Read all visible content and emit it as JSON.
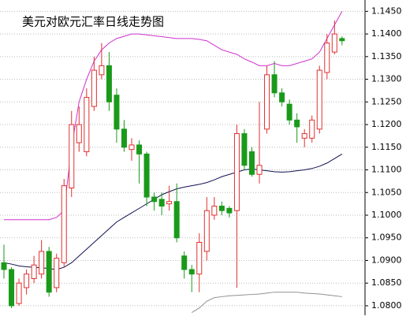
{
  "chart_data": {
    "type": "candlestick",
    "title": "美元对欧元汇率日线走势图",
    "title_color": "#e00000",
    "up_color": "#e03030",
    "down_color": "#1a9a1a",
    "ylim": [
      1.0779,
      1.1475
    ],
    "yticks": [
      {
        "value": 1.08,
        "label": "1.0800"
      },
      {
        "value": 1.085,
        "label": "1.0850"
      },
      {
        "value": 1.09,
        "label": "1.0900"
      },
      {
        "value": 1.095,
        "label": "1.0950"
      },
      {
        "value": 1.1,
        "label": "1.1000"
      },
      {
        "value": 1.105,
        "label": "1.1050"
      },
      {
        "value": 1.11,
        "label": "1.1100"
      },
      {
        "value": 1.115,
        "label": "1.1150"
      },
      {
        "value": 1.12,
        "label": "1.1200"
      },
      {
        "value": 1.125,
        "label": "1.1250"
      },
      {
        "value": 1.13,
        "label": "1.1300"
      },
      {
        "value": 1.135,
        "label": "1.1350"
      },
      {
        "value": 1.14,
        "label": "1.1400"
      },
      {
        "value": 1.145,
        "label": "1.1450"
      }
    ],
    "grid": true,
    "open": [
      1.0895,
      1.088,
      1.0805,
      1.084,
      1.086,
      1.087,
      1.092,
      1.084,
      1.0895,
      1.106,
      1.116,
      1.114,
      1.124,
      1.131,
      1.133,
      1.1265,
      1.119,
      1.1145,
      1.1155,
      1.1135,
      1.104,
      1.1035,
      1.1025,
      1.103,
      1.091,
      1.088,
      1.087,
      1.092,
      1.1,
      1.102,
      1.1015,
      1.101,
      1.118,
      1.114,
      1.109,
      1.119,
      1.131,
      1.127,
      1.1245,
      1.121,
      1.117,
      1.117,
      1.119,
      1.1315,
      1.136,
      1.139
    ],
    "high": [
      1.0935,
      1.0885,
      1.086,
      1.088,
      1.091,
      1.0945,
      1.093,
      1.0915,
      1.108,
      1.123,
      1.124,
      1.128,
      1.135,
      1.138,
      1.136,
      1.128,
      1.121,
      1.117,
      1.1165,
      1.114,
      1.105,
      1.105,
      1.1065,
      1.107,
      1.092,
      1.089,
      1.096,
      1.104,
      1.104,
      1.103,
      1.102,
      1.12,
      1.119,
      1.115,
      1.125,
      1.133,
      1.134,
      1.128,
      1.1255,
      1.1225,
      1.119,
      1.122,
      1.133,
      1.14,
      1.143,
      1.1395
    ],
    "low": [
      1.086,
      1.0795,
      1.08,
      1.0825,
      1.085,
      1.086,
      1.082,
      1.083,
      1.0885,
      1.104,
      1.114,
      1.113,
      1.123,
      1.13,
      1.123,
      1.116,
      1.114,
      1.112,
      1.107,
      1.102,
      1.101,
      1.1,
      1.101,
      1.094,
      1.086,
      1.083,
      1.083,
      1.09,
      1.099,
      1.1,
      1.0995,
      1.084,
      1.11,
      1.1085,
      1.107,
      1.118,
      1.126,
      1.124,
      1.12,
      1.116,
      1.115,
      1.116,
      1.118,
      1.13,
      1.1355,
      1.1375
    ],
    "close": [
      1.088,
      1.08,
      1.085,
      1.087,
      1.089,
      1.092,
      1.083,
      1.0905,
      1.1065,
      1.12,
      1.12,
      1.126,
      1.132,
      1.133,
      1.125,
      1.119,
      1.115,
      1.1155,
      1.1135,
      1.104,
      1.103,
      1.102,
      1.103,
      1.095,
      1.088,
      1.087,
      1.094,
      1.101,
      1.102,
      1.101,
      1.1005,
      1.118,
      1.111,
      1.109,
      1.111,
      1.131,
      1.127,
      1.125,
      1.121,
      1.1195,
      1.118,
      1.121,
      1.132,
      1.138,
      1.14,
      1.1385
    ],
    "series": [
      {
        "name": "upper",
        "color": "#d030d0",
        "values": [
          1.099,
          1.099,
          1.099,
          1.099,
          1.099,
          1.099,
          1.099,
          1.0995,
          1.101,
          1.115,
          1.125,
          1.13,
          1.134,
          1.1365,
          1.138,
          1.139,
          1.1395,
          1.14,
          1.14,
          1.1398,
          1.1396,
          1.1394,
          1.1392,
          1.139,
          1.139,
          1.139,
          1.1388,
          1.1385,
          1.1375,
          1.1365,
          1.136,
          1.1355,
          1.1345,
          1.1338,
          1.133,
          1.133,
          1.1335,
          1.133,
          1.133,
          1.1335,
          1.134,
          1.1345,
          1.136,
          1.139,
          1.142,
          1.145
        ]
      },
      {
        "name": "middle",
        "color": "#101050",
        "values": [
          1.0895,
          1.0892,
          1.0888,
          1.0886,
          1.0885,
          1.0884,
          1.0882,
          1.088,
          1.0885,
          1.0895,
          1.091,
          1.0925,
          1.094,
          1.0955,
          1.097,
          1.0985,
          1.0995,
          1.1005,
          1.1015,
          1.1025,
          1.1035,
          1.1045,
          1.1052,
          1.1058,
          1.1062,
          1.1065,
          1.1068,
          1.1072,
          1.1078,
          1.1085,
          1.109,
          1.1095,
          1.11,
          1.1102,
          1.11,
          1.1098,
          1.1096,
          1.1095,
          1.1096,
          1.1098,
          1.11,
          1.1103,
          1.1108,
          1.1115,
          1.1125,
          1.1135
        ]
      },
      {
        "name": "lower",
        "color": "#909090",
        "values": [
          null,
          null,
          null,
          null,
          null,
          null,
          null,
          null,
          null,
          null,
          null,
          null,
          null,
          null,
          null,
          null,
          null,
          null,
          null,
          null,
          null,
          null,
          null,
          null,
          null,
          1.0785,
          1.0795,
          1.081,
          1.0818,
          1.082,
          1.0822,
          1.0823,
          1.0824,
          1.0825,
          1.0826,
          1.0828,
          1.083,
          1.083,
          1.083,
          1.083,
          1.0828,
          1.0827,
          1.0826,
          1.0824,
          1.0822,
          1.082
        ]
      }
    ]
  }
}
